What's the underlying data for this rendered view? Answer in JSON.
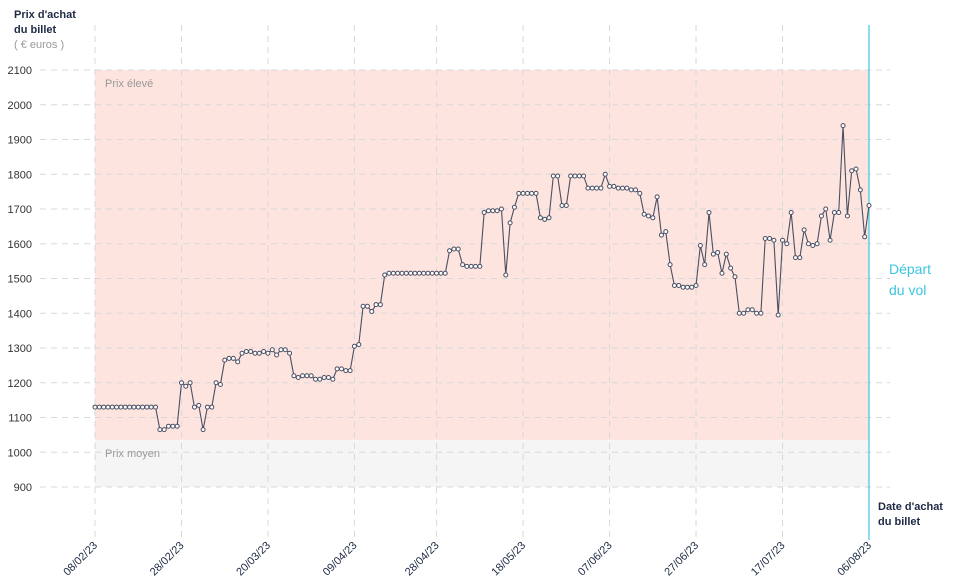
{
  "chart_data": {
    "type": "line",
    "y_label": [
      "Prix d'achat",
      "du billet"
    ],
    "y_unit": "( € euros )",
    "x_label": [
      "Date d'achat",
      "du billet"
    ],
    "annotation": [
      "Départ",
      "du vol"
    ],
    "departure": "06/08/23",
    "departure_color": "#3bc6e0",
    "bands": [
      {
        "label": "Prix élevé",
        "from": 1035,
        "to": 2100,
        "color": "#fde4df"
      },
      {
        "label": "Prix moyen",
        "from": 900,
        "to": 1035,
        "color": "#f5f5f5"
      }
    ],
    "color": "#4a4f63",
    "grid": true,
    "xlim": [
      "08/02/23",
      "06/08/23"
    ],
    "xticks": [
      "08/02/23",
      "28/02/23",
      "20/03/23",
      "09/04/23",
      "28/04/23",
      "18/05/23",
      "07/06/23",
      "27/06/23",
      "17/07/23",
      "06/08/23"
    ],
    "ylim": [
      900,
      2100
    ],
    "yticks": [
      900,
      1000,
      1100,
      1200,
      1300,
      1400,
      1500,
      1600,
      1700,
      1800,
      1900,
      2000,
      2100
    ],
    "x": [
      "08/02/23",
      "09/02/23",
      "10/02/23",
      "11/02/23",
      "12/02/23",
      "13/02/23",
      "14/02/23",
      "15/02/23",
      "16/02/23",
      "17/02/23",
      "18/02/23",
      "19/02/23",
      "20/02/23",
      "21/02/23",
      "22/02/23",
      "23/02/23",
      "24/02/23",
      "25/02/23",
      "26/02/23",
      "27/02/23",
      "28/02/23",
      "01/03/23",
      "02/03/23",
      "03/03/23",
      "04/03/23",
      "05/03/23",
      "06/03/23",
      "07/03/23",
      "08/03/23",
      "09/03/23",
      "10/03/23",
      "11/03/23",
      "12/03/23",
      "13/03/23",
      "14/03/23",
      "15/03/23",
      "16/03/23",
      "17/03/23",
      "18/03/23",
      "19/03/23",
      "20/03/23",
      "21/03/23",
      "22/03/23",
      "23/03/23",
      "24/03/23",
      "25/03/23",
      "26/03/23",
      "27/03/23",
      "28/03/23",
      "29/03/23",
      "30/03/23",
      "31/03/23",
      "01/04/23",
      "02/04/23",
      "03/04/23",
      "04/04/23",
      "05/04/23",
      "06/04/23",
      "07/04/23",
      "08/04/23",
      "09/04/23",
      "10/04/23",
      "11/04/23",
      "12/04/23",
      "13/04/23",
      "14/04/23",
      "15/04/23",
      "16/04/23",
      "17/04/23",
      "18/04/23",
      "19/04/23",
      "20/04/23",
      "21/04/23",
      "22/04/23",
      "23/04/23",
      "24/04/23",
      "25/04/23",
      "26/04/23",
      "27/04/23",
      "28/04/23",
      "29/04/23",
      "30/04/23",
      "01/05/23",
      "02/05/23",
      "03/05/23",
      "04/05/23",
      "05/05/23",
      "06/05/23",
      "07/05/23",
      "08/05/23",
      "09/05/23",
      "10/05/23",
      "11/05/23",
      "12/05/23",
      "13/05/23",
      "14/05/23",
      "15/05/23",
      "16/05/23",
      "17/05/23",
      "18/05/23",
      "19/05/23",
      "20/05/23",
      "21/05/23",
      "22/05/23",
      "23/05/23",
      "24/05/23",
      "25/05/23",
      "26/05/23",
      "27/05/23",
      "28/05/23",
      "29/05/23",
      "30/05/23",
      "31/05/23",
      "01/06/23",
      "02/06/23",
      "03/06/23",
      "04/06/23",
      "05/06/23",
      "06/06/23",
      "07/06/23",
      "08/06/23",
      "09/06/23",
      "10/06/23",
      "11/06/23",
      "12/06/23",
      "13/06/23",
      "14/06/23",
      "15/06/23",
      "16/06/23",
      "17/06/23",
      "18/06/23",
      "19/06/23",
      "20/06/23",
      "21/06/23",
      "22/06/23",
      "23/06/23",
      "24/06/23",
      "25/06/23",
      "26/06/23",
      "27/06/23",
      "28/06/23",
      "29/06/23",
      "30/06/23",
      "01/07/23",
      "02/07/23",
      "03/07/23",
      "04/07/23",
      "05/07/23",
      "06/07/23",
      "07/07/23",
      "08/07/23",
      "09/07/23",
      "10/07/23",
      "11/07/23",
      "12/07/23",
      "13/07/23",
      "14/07/23",
      "15/07/23",
      "16/07/23",
      "17/07/23",
      "18/07/23",
      "19/07/23",
      "20/07/23",
      "21/07/23",
      "22/07/23",
      "23/07/23",
      "24/07/23",
      "25/07/23",
      "26/07/23",
      "27/07/23",
      "28/07/23",
      "29/07/23",
      "30/07/23",
      "31/07/23",
      "01/08/23",
      "02/08/23",
      "03/08/23",
      "04/08/23",
      "05/08/23",
      "06/08/23"
    ],
    "values": [
      1130,
      1130,
      1130,
      1130,
      1130,
      1130,
      1130,
      1130,
      1130,
      1130,
      1130,
      1130,
      1130,
      1130,
      1130,
      1065,
      1065,
      1075,
      1075,
      1075,
      1200,
      1190,
      1200,
      1130,
      1135,
      1065,
      1130,
      1130,
      1200,
      1195,
      1265,
      1270,
      1270,
      1260,
      1285,
      1290,
      1290,
      1285,
      1285,
      1290,
      1285,
      1295,
      1280,
      1295,
      1295,
      1285,
      1220,
      1215,
      1220,
      1220,
      1220,
      1210,
      1210,
      1215,
      1215,
      1210,
      1240,
      1240,
      1235,
      1235,
      1305,
      1310,
      1420,
      1420,
      1405,
      1425,
      1425,
      1510,
      1515,
      1515,
      1515,
      1515,
      1515,
      1515,
      1515,
      1515,
      1515,
      1515,
      1515,
      1515,
      1515,
      1515,
      1580,
      1585,
      1585,
      1540,
      1535,
      1535,
      1535,
      1535,
      1690,
      1695,
      1695,
      1695,
      1700,
      1510,
      1660,
      1705,
      1745,
      1745,
      1745,
      1745,
      1745,
      1675,
      1670,
      1675,
      1795,
      1795,
      1710,
      1710,
      1795,
      1795,
      1795,
      1795,
      1760,
      1760,
      1760,
      1760,
      1800,
      1765,
      1765,
      1760,
      1760,
      1760,
      1755,
      1755,
      1745,
      1685,
      1680,
      1675,
      1735,
      1625,
      1635,
      1540,
      1480,
      1480,
      1475,
      1475,
      1475,
      1480,
      1595,
      1540,
      1690,
      1570,
      1575,
      1515,
      1570,
      1530,
      1505,
      1400,
      1400,
      1410,
      1410,
      1400,
      1400,
      1615,
      1615,
      1610,
      1395,
      1610,
      1600,
      1690,
      1560,
      1560,
      1640,
      1600,
      1595,
      1600,
      1680,
      1700,
      1610,
      1690,
      1690,
      1940,
      1680,
      1810,
      1815,
      1755,
      1620,
      1710
    ]
  }
}
